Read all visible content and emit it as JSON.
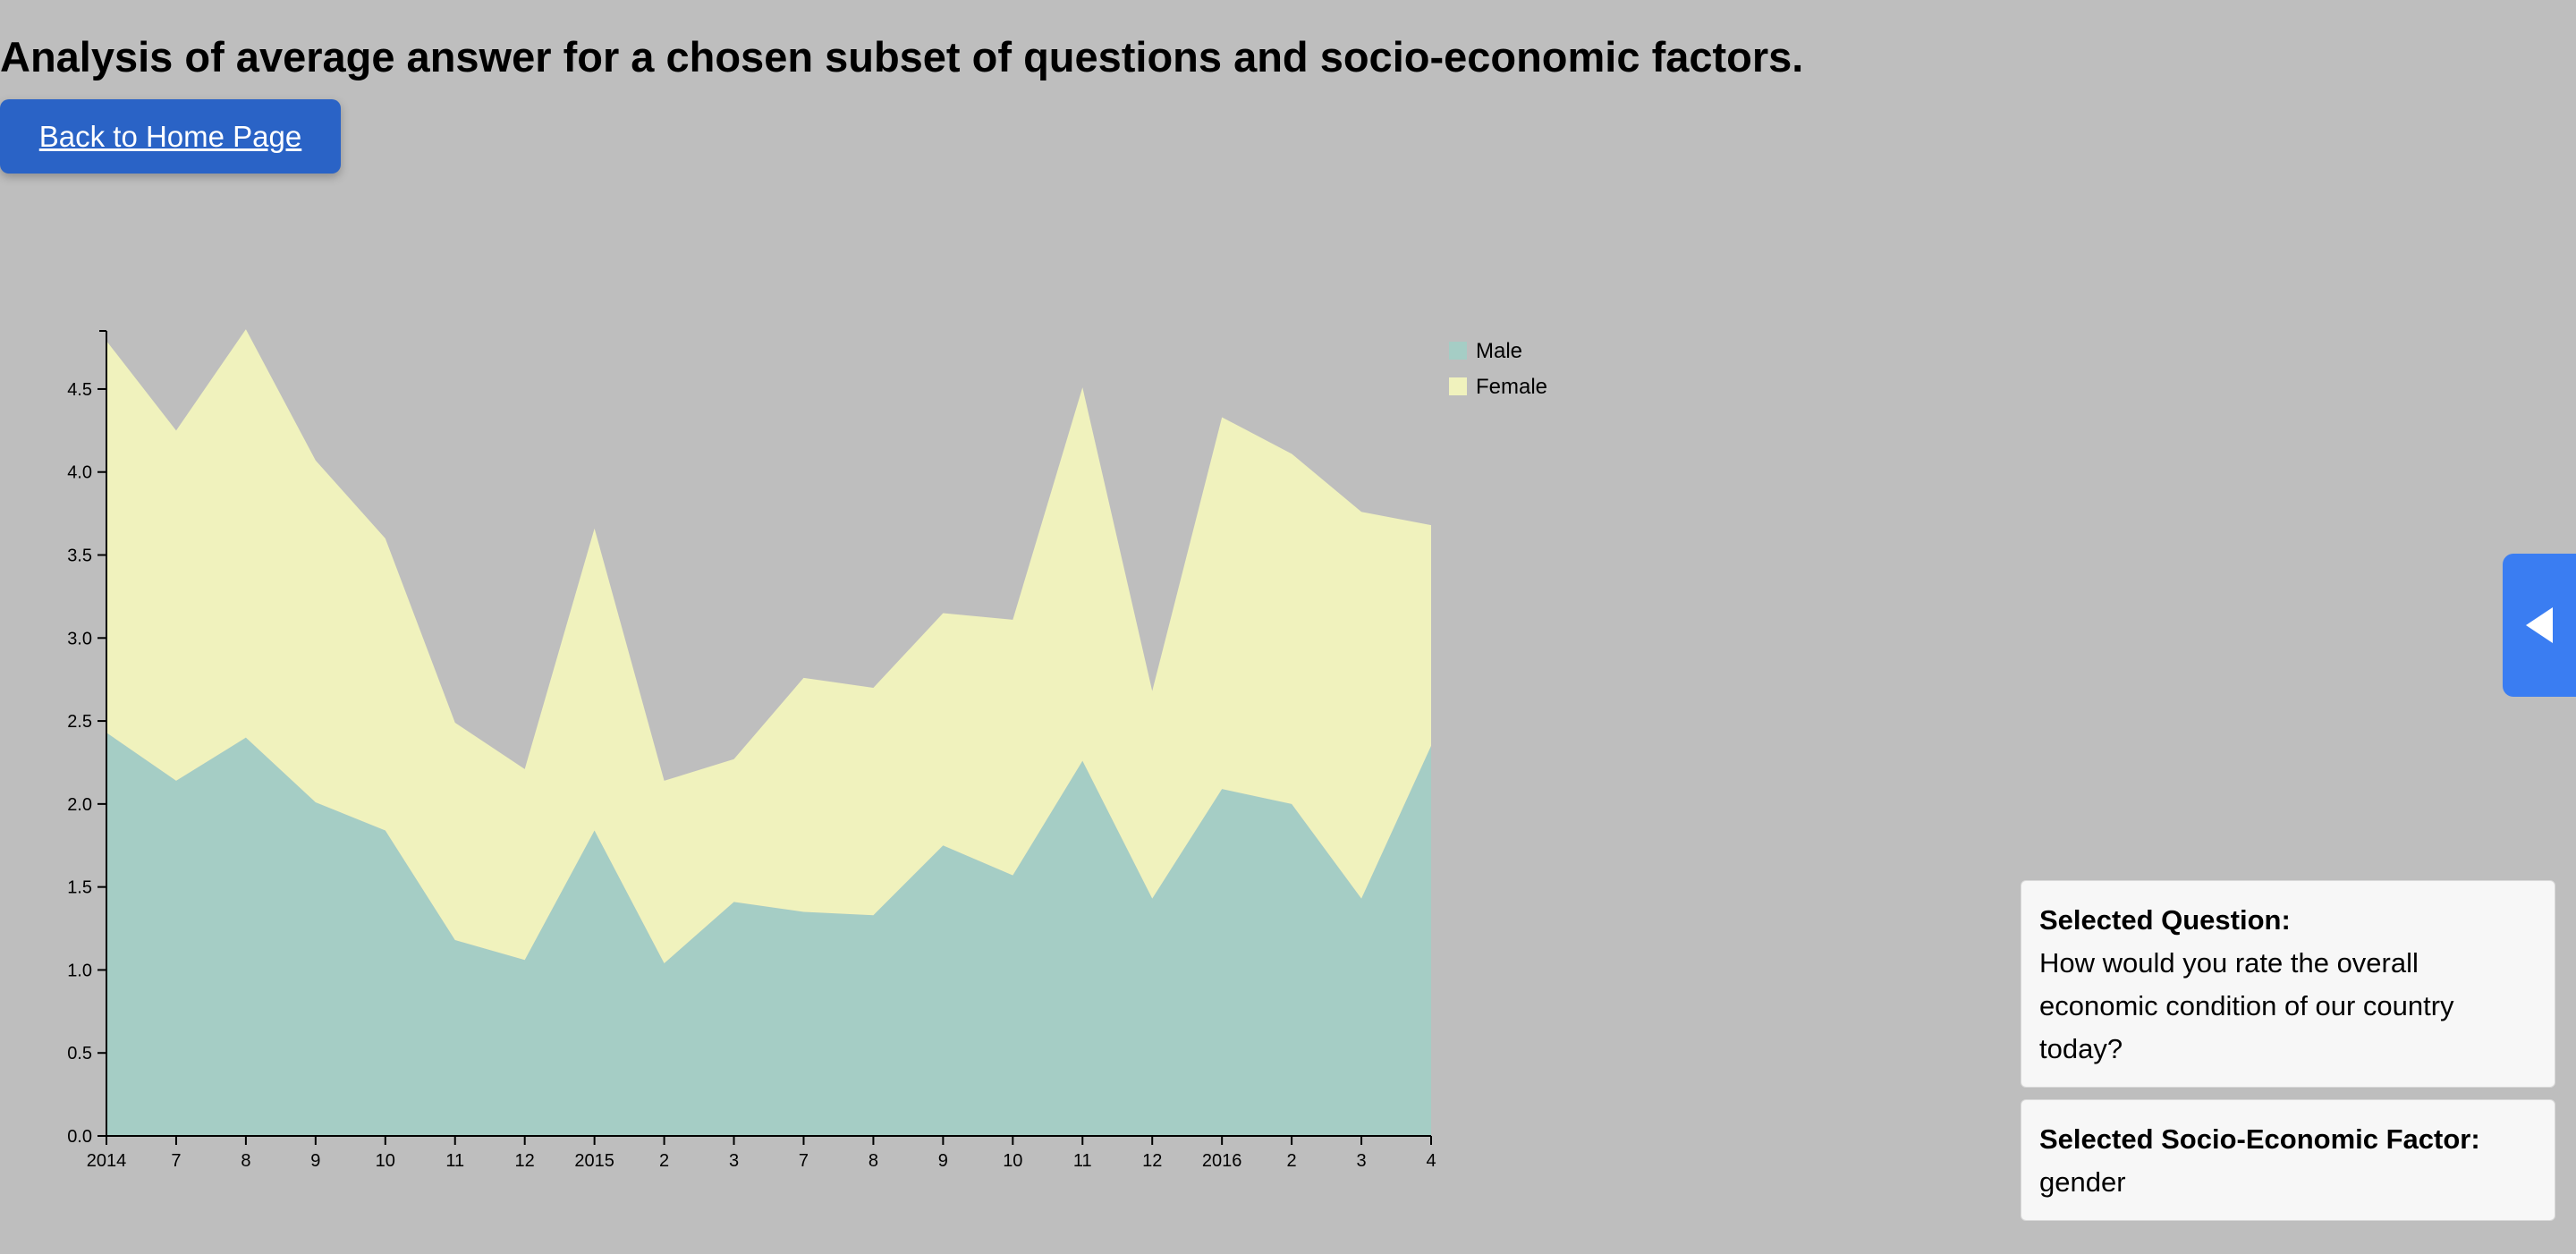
{
  "page": {
    "title": "Analysis of average answer for a chosen subset of questions and socio-economic factors.",
    "back_button": "Back to Home Page"
  },
  "info": {
    "question_heading": "Selected Question:",
    "question_text": "How would you rate the overall economic condition of our country today?",
    "factor_heading": "Selected Socio-Economic Factor:",
    "factor_text": "gender"
  },
  "colors": {
    "background": "#bebebe",
    "male": "#a5cdc5",
    "female": "#f0f2bd",
    "button": "#2a63c6",
    "toggle": "#3a7df2"
  },
  "icons": {
    "toggle": "triangle-left-icon"
  },
  "chart_data": {
    "type": "area",
    "stacked": true,
    "categories": [
      "2014",
      "7",
      "8",
      "9",
      "10",
      "11",
      "12",
      "2015",
      "2",
      "3",
      "7",
      "8",
      "9",
      "10",
      "11",
      "12",
      "2016",
      "2",
      "3",
      "4"
    ],
    "yticks": [
      "0.0",
      "0.5",
      "1.0",
      "1.5",
      "2.0",
      "2.5",
      "3.0",
      "3.5",
      "4.0",
      "4.5"
    ],
    "ylim": [
      0,
      4.85
    ],
    "legend_position": "top-right",
    "series": [
      {
        "name": "Male",
        "color": "#a5cdc5",
        "values": [
          2.43,
          2.14,
          2.4,
          2.01,
          1.84,
          1.18,
          1.06,
          1.84,
          1.04,
          1.41,
          1.35,
          1.33,
          1.75,
          1.57,
          2.26,
          1.43,
          2.09,
          2.0,
          1.43,
          2.35
        ]
      },
      {
        "name": "Female",
        "color": "#f0f2bd",
        "values": [
          2.36,
          2.11,
          2.46,
          2.06,
          1.76,
          1.31,
          1.15,
          1.82,
          1.1,
          0.86,
          1.41,
          1.37,
          1.4,
          1.54,
          2.25,
          1.25,
          2.24,
          2.11,
          2.33,
          1.33
        ]
      }
    ]
  }
}
